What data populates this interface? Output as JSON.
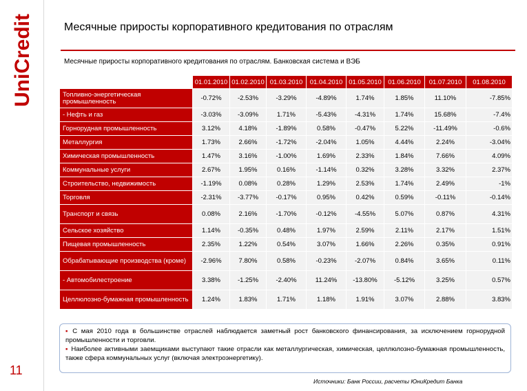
{
  "brand": {
    "name": "UniCredit",
    "accent": "#c00000"
  },
  "page_number": "11",
  "title": "Месячные приросты корпоративного кредитования по отраслям",
  "table_title": "Месячные приросты корпоративного кредитования по отраслям. Банковская система и ВЭБ",
  "table": {
    "columns": [
      "01.01.2010",
      "01.02.2010",
      "01.03.2010",
      "01.04.2010",
      "01.05.2010",
      "01.06.2010",
      "01.07.2010",
      "01.08.2010"
    ],
    "rows": [
      {
        "label": "Топливно-энергетическая промышленность",
        "values": [
          "-0.72%",
          "-2.53%",
          "-3.29%",
          "-4.89%",
          "1.74%",
          "1.85%",
          "11.10%",
          "-7.85%"
        ]
      },
      {
        "label": "- Нефть и газ",
        "values": [
          "-3.03%",
          "-3.09%",
          "1.71%",
          "-5.43%",
          "-4.31%",
          "1.74%",
          "15.68%",
          "-7.4%"
        ]
      },
      {
        "label": "Горнорудная промышленность",
        "values": [
          "3.12%",
          "4.18%",
          "-1.89%",
          "0.58%",
          "-0.47%",
          "5.22%",
          "-11.49%",
          "-0.6%"
        ]
      },
      {
        "label": "Металлургия",
        "values": [
          "1.73%",
          "2.66%",
          "-1.72%",
          "-2.04%",
          "1.05%",
          "4.44%",
          "2.24%",
          "-3.04%"
        ]
      },
      {
        "label": "Химическая промышленность",
        "values": [
          "1.47%",
          "3.16%",
          "-1.00%",
          "1.69%",
          "2.33%",
          "1.84%",
          "7.66%",
          "4.09%"
        ]
      },
      {
        "label": "Коммунальные услуги",
        "values": [
          "2.67%",
          "1.95%",
          "0.16%",
          "-1.14%",
          "0.32%",
          "3.28%",
          "3.32%",
          "2.37%"
        ]
      },
      {
        "label": "Строительство, недвижимость",
        "values": [
          "-1.19%",
          "0.08%",
          "0.28%",
          "1.29%",
          "2.53%",
          "1.74%",
          "2.49%",
          "-1%"
        ]
      },
      {
        "label": "Торговля",
        "values": [
          "-2.31%",
          "-3.77%",
          "-0.17%",
          "0.95%",
          "0.42%",
          "0.59%",
          "-0.11%",
          "-0.14%"
        ]
      },
      {
        "label": "Транспорт и связь",
        "values": [
          "0.08%",
          "2.16%",
          "-1.70%",
          "-0.12%",
          "-4.55%",
          "5.07%",
          "0.87%",
          "4.31%"
        ]
      },
      {
        "label": "Сельское хозяйство",
        "values": [
          "1.14%",
          "-0.35%",
          "0.48%",
          "1.97%",
          "2.59%",
          "2.11%",
          "2.17%",
          "1.51%"
        ]
      },
      {
        "label": "Пищевая промышленность",
        "values": [
          "2.35%",
          "1.22%",
          "0.54%",
          "3.07%",
          "1.66%",
          "2.26%",
          "0.35%",
          "0.91%"
        ]
      },
      {
        "label": "Обрабатывающие производства (кроме)",
        "values": [
          "-2.96%",
          "7.80%",
          "0.58%",
          "-0.23%",
          "-2.07%",
          "0.84%",
          "3.65%",
          "0.11%"
        ]
      },
      {
        "label": "- Автомобилестроение",
        "values": [
          "3.38%",
          "-1.25%",
          "-2.40%",
          "11.24%",
          "-13.80%",
          "-5.12%",
          "3.25%",
          "0.57%"
        ]
      },
      {
        "label": "Целлюлозно-бумажная промышленность",
        "values": [
          "1.24%",
          "1.83%",
          "1.71%",
          "1.18%",
          "1.91%",
          "3.07%",
          "2.88%",
          "3.83%"
        ]
      }
    ]
  },
  "notes": [
    "С мая 2010 года в большинстве отраслей наблюдается заметный рост банковского финансирования, за исключением горнорудной промышленности и торговли.",
    "Наиболее активными заемщиками выступают такие отрасли как металлургическая, химическая, целлюлозно-бумажная промышленность, также сфера коммунальных услуг (включая электроэнергетику)."
  ],
  "source": "Источники: Банк России, расчеты ЮниКредит Банка"
}
